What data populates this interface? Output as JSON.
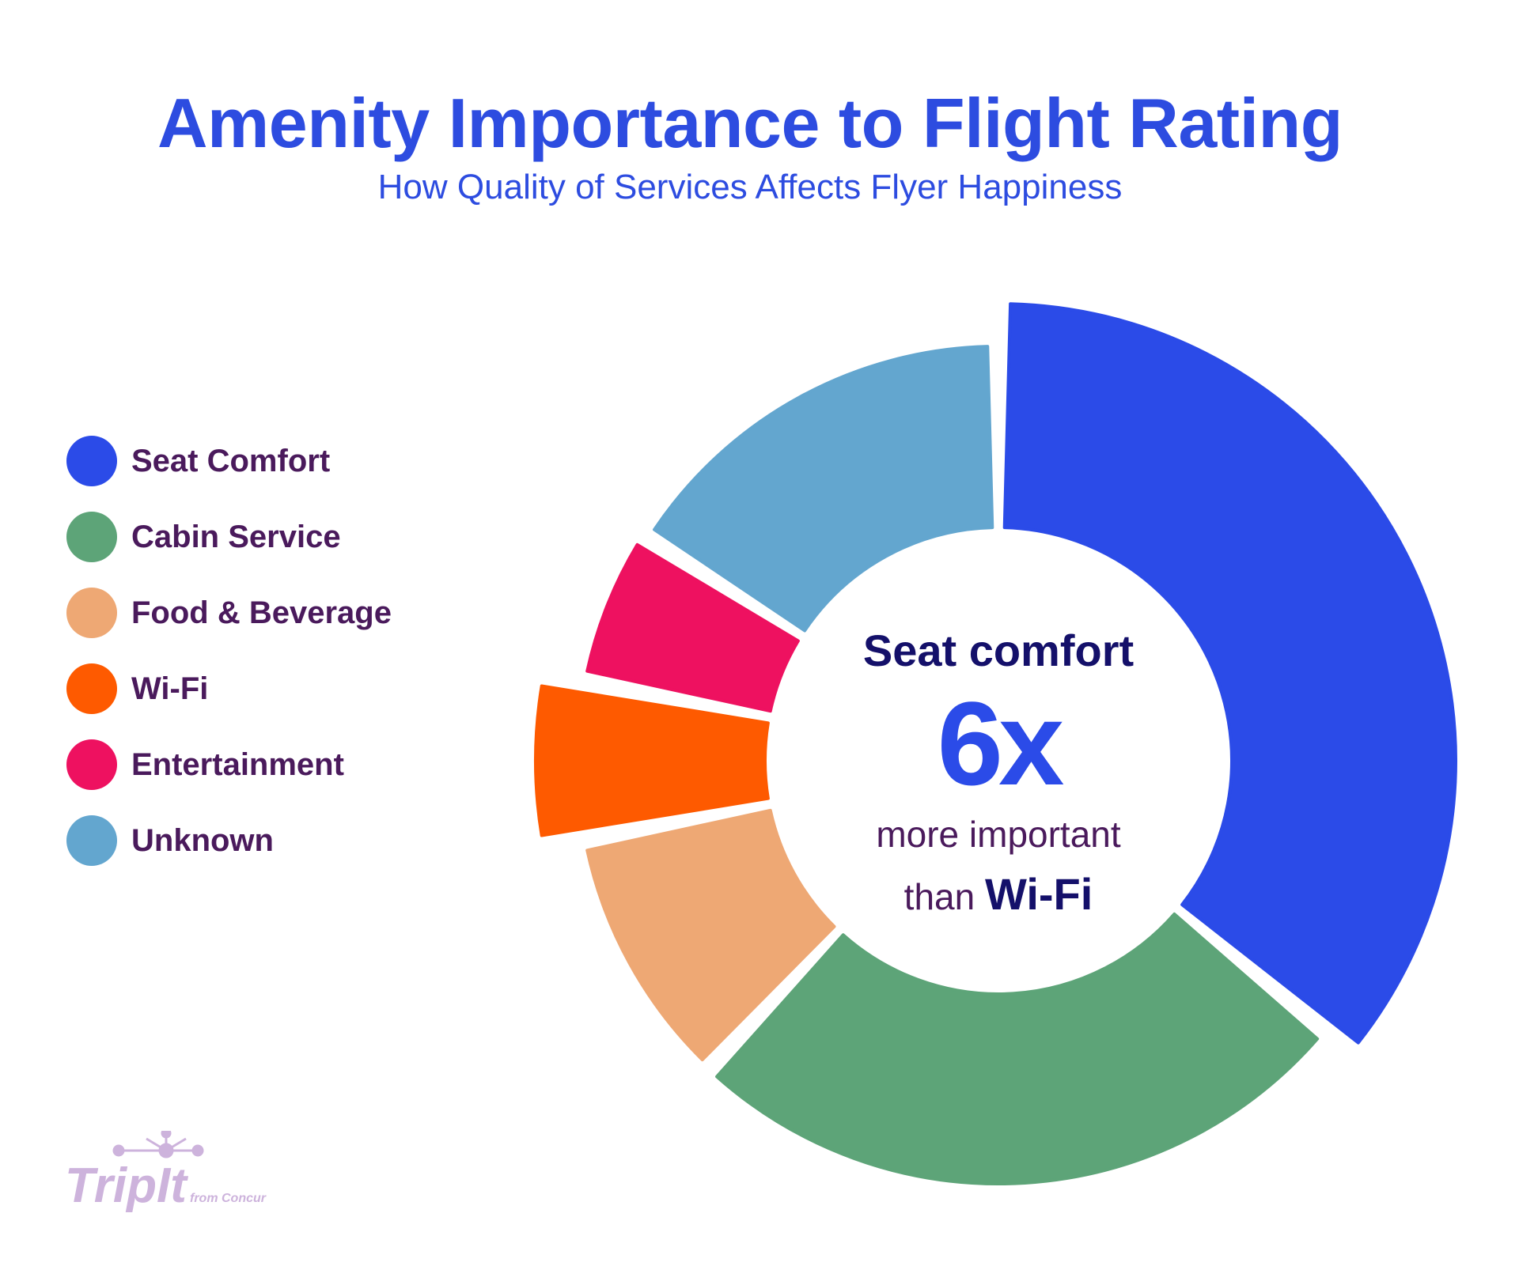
{
  "chart_data": {
    "type": "pie",
    "title": "Amenity Importance to Flight Rating",
    "subtitle": "How Quality of Services Affects Flyer Happiness",
    "donut": true,
    "legend_position": "left",
    "categories": [
      "Seat Comfort",
      "Cabin Service",
      "Food & Beverage",
      "Wi-Fi",
      "Entertainment",
      "Unknown"
    ],
    "values": [
      36,
      26,
      10,
      6,
      6,
      16
    ],
    "colors": [
      "#2b4be8",
      "#5da478",
      "#eea874",
      "#fe5a00",
      "#ee1160",
      "#63a6cf"
    ],
    "annotation": {
      "line1": "Seat comfort",
      "big": "6x",
      "line3": "more important",
      "line4_prefix": "than",
      "line4_bold": "Wi-Fi"
    }
  },
  "logo": {
    "text": "TripIt",
    "suffix": "from Concur",
    "color": "#cdb3dc"
  }
}
